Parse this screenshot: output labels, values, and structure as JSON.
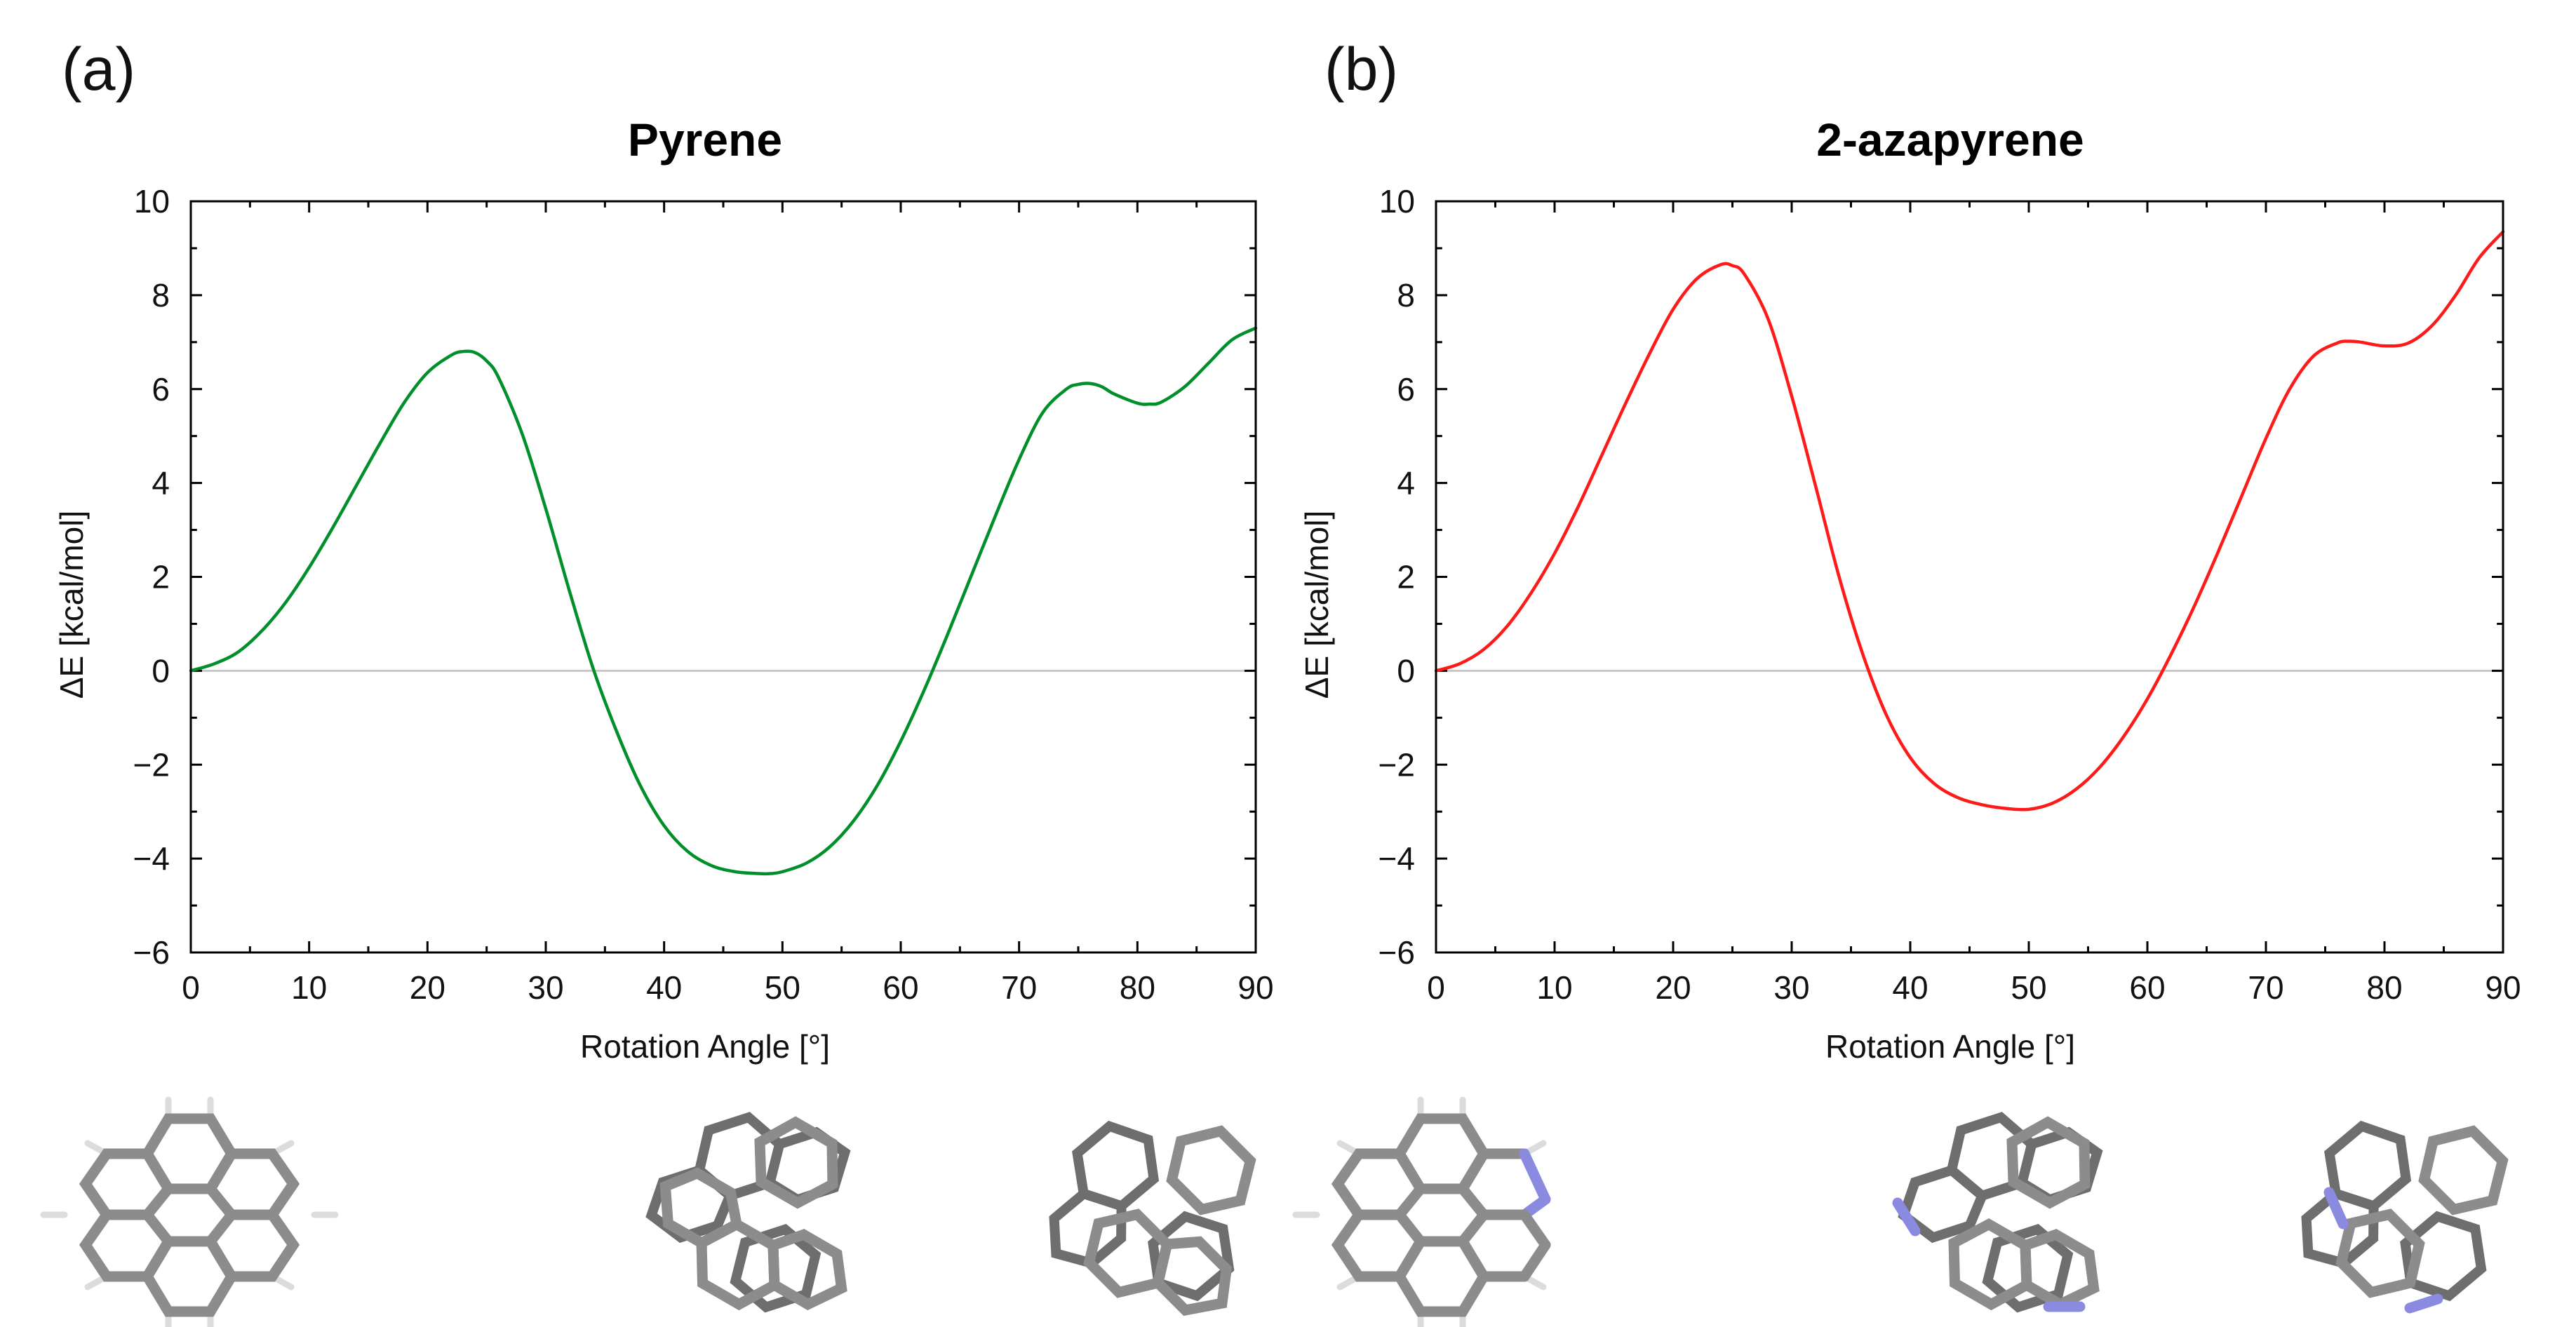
{
  "panels": [
    {
      "letter": "(a)"
    },
    {
      "letter": "(b)"
    }
  ],
  "chart_data": [
    {
      "type": "line",
      "title": "Pyrene",
      "xlabel": "Rotation Angle [°]",
      "ylabel": "ΔE [kcal/mol]",
      "xlim": [
        0,
        90
      ],
      "ylim": [
        -6,
        10
      ],
      "xticks": [
        "0",
        "10",
        "20",
        "30",
        "40",
        "50",
        "60",
        "70",
        "80",
        "90"
      ],
      "yticks": [
        "10",
        "8",
        "6",
        "4",
        "2",
        "0",
        "−2",
        "−4",
        "−6"
      ],
      "grid": false,
      "reference_line_y": 0,
      "series": [
        {
          "name": "Pyrene",
          "color": "#008f2a",
          "x": [
            0,
            2,
            4,
            6,
            8,
            10,
            12,
            14,
            16,
            18,
            20,
            22,
            23,
            24,
            25,
            26,
            28,
            30,
            32,
            34,
            36,
            38,
            40,
            42,
            44,
            46,
            48,
            49,
            50,
            52,
            54,
            56,
            58,
            60,
            62,
            64,
            66,
            68,
            70,
            72,
            74,
            75,
            76,
            77,
            78,
            80,
            81,
            82,
            84,
            86,
            88,
            90
          ],
          "y": [
            0.0,
            0.15,
            0.4,
            0.85,
            1.45,
            2.2,
            3.05,
            3.95,
            4.85,
            5.7,
            6.35,
            6.72,
            6.8,
            6.78,
            6.6,
            6.25,
            5.05,
            3.45,
            1.7,
            0.05,
            -1.3,
            -2.45,
            -3.3,
            -3.85,
            -4.15,
            -4.28,
            -4.32,
            -4.32,
            -4.28,
            -4.1,
            -3.75,
            -3.2,
            -2.45,
            -1.5,
            -0.4,
            0.8,
            2.05,
            3.3,
            4.5,
            5.5,
            6.0,
            6.1,
            6.12,
            6.05,
            5.9,
            5.7,
            5.68,
            5.72,
            6.05,
            6.55,
            7.05,
            7.3
          ]
        }
      ]
    },
    {
      "type": "line",
      "title": "2-azapyrene",
      "xlabel": "Rotation Angle [°]",
      "ylabel": "ΔE [kcal/mol]",
      "xlim": [
        0,
        90
      ],
      "ylim": [
        -6,
        10
      ],
      "xticks": [
        "0",
        "10",
        "20",
        "30",
        "40",
        "50",
        "60",
        "70",
        "80",
        "90"
      ],
      "yticks": [
        "10",
        "8",
        "6",
        "4",
        "2",
        "0",
        "−2",
        "−4",
        "−6"
      ],
      "grid": false,
      "reference_line_y": 0,
      "series": [
        {
          "name": "2-azapyrene",
          "color": "#ff1a1a",
          "x": [
            0,
            2,
            4,
            6,
            8,
            10,
            12,
            14,
            16,
            18,
            20,
            22,
            24,
            25,
            26,
            28,
            30,
            32,
            34,
            36,
            38,
            40,
            42,
            44,
            46,
            48,
            50,
            52,
            54,
            56,
            58,
            60,
            62,
            64,
            66,
            68,
            70,
            72,
            74,
            76,
            77,
            78,
            80,
            82,
            84,
            86,
            88,
            90
          ],
          "y": [
            0.0,
            0.15,
            0.45,
            0.95,
            1.65,
            2.5,
            3.5,
            4.6,
            5.7,
            6.75,
            7.7,
            8.35,
            8.65,
            8.63,
            8.45,
            7.5,
            5.85,
            3.95,
            2.0,
            0.35,
            -0.95,
            -1.85,
            -2.4,
            -2.7,
            -2.85,
            -2.93,
            -2.95,
            -2.82,
            -2.52,
            -2.05,
            -1.4,
            -0.6,
            0.35,
            1.4,
            2.55,
            3.75,
            4.95,
            6.0,
            6.7,
            6.98,
            7.02,
            7.0,
            6.92,
            6.98,
            7.35,
            8.0,
            8.8,
            9.35
          ]
        }
      ]
    }
  ],
  "molecule_images": [
    {
      "name": "pyrene-0deg"
    },
    {
      "name": "pyrene-49deg"
    },
    {
      "name": "pyrene-81deg"
    },
    {
      "name": "azapyrene-0deg"
    },
    {
      "name": "azapyrene-50deg"
    },
    {
      "name": "azapyrene-80deg"
    }
  ]
}
